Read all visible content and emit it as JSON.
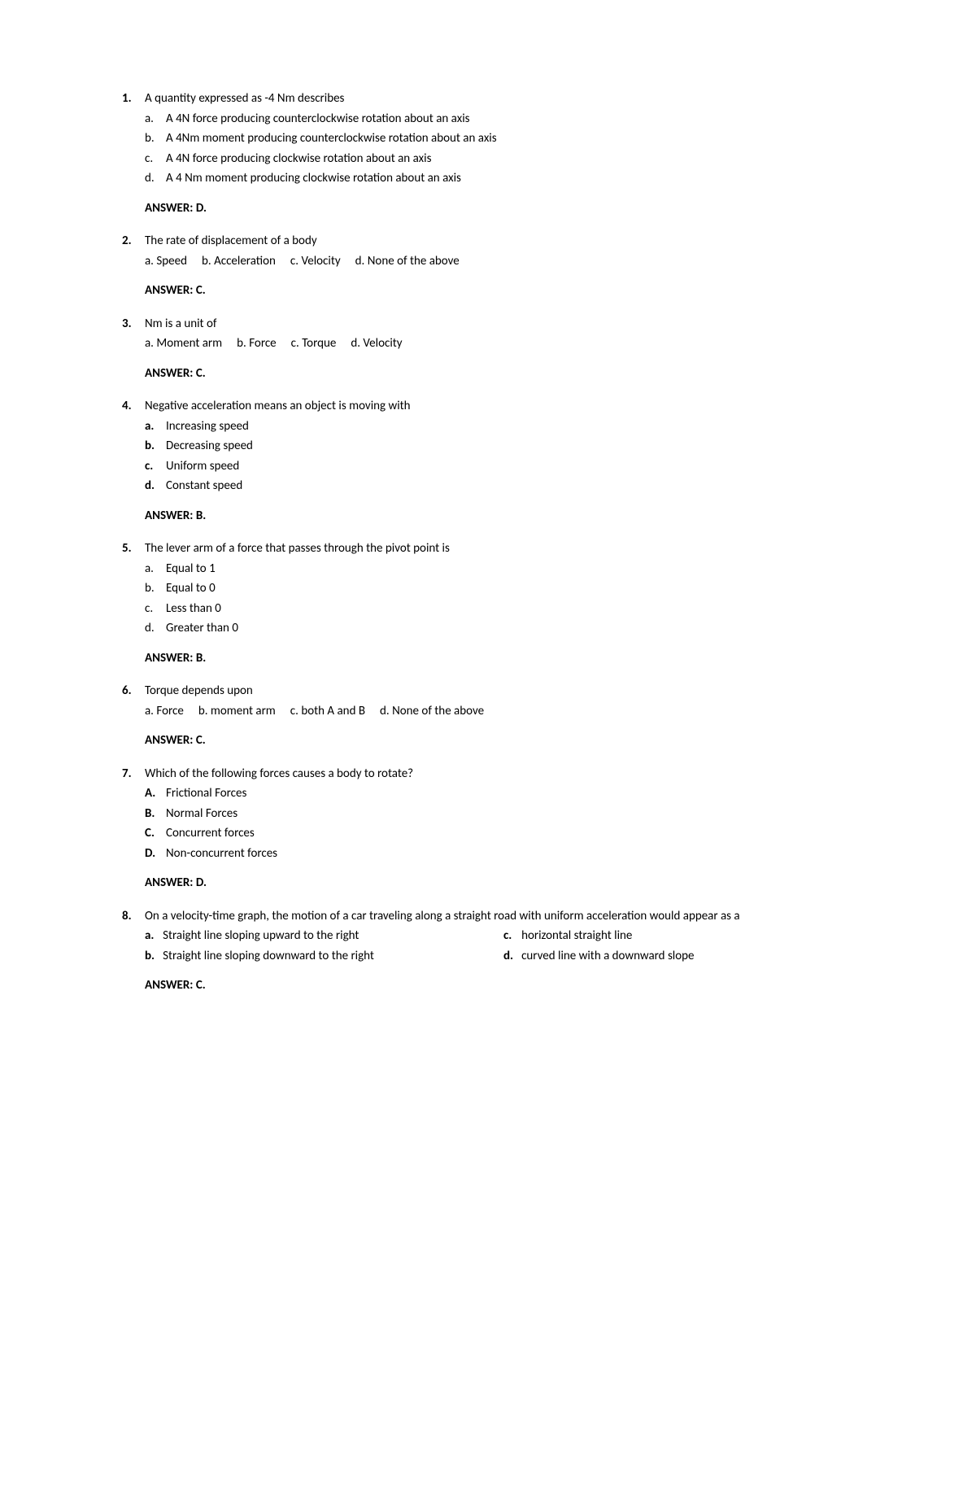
{
  "questions": [
    {
      "num": "1.",
      "text": "A quantity expressed as -4 Nm describes",
      "layout": "vertical",
      "letter_bold": false,
      "options": [
        {
          "l": "a.",
          "t": "A 4N force producing counterclockwise rotation about an axis"
        },
        {
          "l": "b.",
          "t": "A 4Nm moment producing counterclockwise rotation about an axis"
        },
        {
          "l": "c.",
          "t": "A 4N force producing clockwise rotation about an axis"
        },
        {
          "l": "d.",
          "t": "A 4 Nm moment producing clockwise rotation about an axis"
        }
      ],
      "answer": "ANSWER: D."
    },
    {
      "num": "2.",
      "text": "The rate of displacement of a body",
      "layout": "inline",
      "options": [
        {
          "l": "a.",
          "t": "Speed"
        },
        {
          "l": "b.",
          "t": "Acceleration"
        },
        {
          "l": "c.",
          "t": "Velocity"
        },
        {
          "l": "d.",
          "t": "None of the above"
        }
      ],
      "answer": "ANSWER: C."
    },
    {
      "num": "3.",
      "text": "Nm is a unit of",
      "layout": "inline",
      "options": [
        {
          "l": "a.",
          "t": "Moment arm"
        },
        {
          "l": "b.",
          "t": "Force"
        },
        {
          "l": "c.",
          "t": "Torque"
        },
        {
          "l": "d.",
          "t": "Velocity"
        }
      ],
      "answer": "ANSWER: C."
    },
    {
      "num": "4.",
      "text": "Negative acceleration means an object is moving with",
      "layout": "vertical",
      "letter_bold": true,
      "options": [
        {
          "l": "a.",
          "t": "Increasing speed"
        },
        {
          "l": "b.",
          "t": "Decreasing speed"
        },
        {
          "l": "c.",
          "t": "Uniform speed"
        },
        {
          "l": "d.",
          "t": "Constant speed"
        }
      ],
      "answer": "ANSWER: B."
    },
    {
      "num": "5.",
      "text": "The lever arm of a force that passes through the pivot point is",
      "layout": "vertical",
      "letter_bold": false,
      "options": [
        {
          "l": "a.",
          "t": "Equal to 1"
        },
        {
          "l": "b.",
          "t": "Equal to 0"
        },
        {
          "l": "c.",
          "t": "Less than 0"
        },
        {
          "l": "d.",
          "t": "Greater than 0"
        }
      ],
      "answer": "ANSWER: B."
    },
    {
      "num": "6.",
      "text": "Torque depends upon",
      "layout": "inline",
      "options": [
        {
          "l": "a.",
          "t": "Force"
        },
        {
          "l": "b.",
          "t": "moment arm"
        },
        {
          "l": "c.",
          "t": "both A and B"
        },
        {
          "l": "d.",
          "t": "None of the above"
        }
      ],
      "answer": "ANSWER: C."
    },
    {
      "num": "7.",
      "text": "Which of the following forces causes a body to rotate?",
      "layout": "vertical",
      "letter_bold": true,
      "options": [
        {
          "l": "A.",
          "t": "Frictional Forces"
        },
        {
          "l": "B.",
          "t": "Normal Forces"
        },
        {
          "l": "C.",
          "t": "Concurrent forces"
        },
        {
          "l": "D.",
          "t": "Non-concurrent forces"
        }
      ],
      "answer": "ANSWER: D."
    },
    {
      "num": "8.",
      "text": "On a velocity-time graph, the motion of a car traveling along a straight road with uniform acceleration would appear as a",
      "layout": "grid",
      "options": [
        {
          "l": "a.",
          "t": "Straight line sloping upward to the right"
        },
        {
          "l": "c.",
          "t": "horizontal straight line"
        },
        {
          "l": "b.",
          "t": "Straight line sloping downward to the right"
        },
        {
          "l": "d.",
          "t": "curved line with a downward slope"
        }
      ],
      "answer": "ANSWER: C."
    }
  ]
}
